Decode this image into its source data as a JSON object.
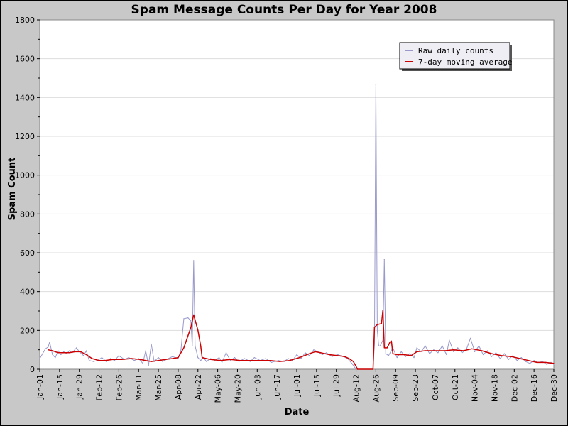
{
  "chart_data": {
    "type": "line",
    "title": "Spam Message Counts Per Day for Year 2008",
    "xlabel": "Date",
    "ylabel": "Spam Count",
    "ylim": [
      0,
      1800
    ],
    "y_ticks": [
      0,
      200,
      400,
      600,
      800,
      1000,
      1200,
      1400,
      1600,
      1800
    ],
    "grid": true,
    "legend_position": "top-right",
    "x_range": [
      "2008-01-01",
      "2008-12-30"
    ],
    "x_tick_labels": [
      "Jan-01",
      "Jan-15",
      "Jan-29",
      "Feb-12",
      "Feb-26",
      "Mar-11",
      "Mar-25",
      "Apr-08",
      "Apr-22",
      "May-06",
      "May-20",
      "Jun-03",
      "Jun-17",
      "Jul-01",
      "Jul-15",
      "Jul-29",
      "Aug-12",
      "Aug-26",
      "Sep-09",
      "Sep-23",
      "Oct-07",
      "Oct-21",
      "Nov-04",
      "Nov-18",
      "Dec-02",
      "Dec-16",
      "Dec-30"
    ],
    "colors": {
      "raw": "#9999cc",
      "avg": "#cc0000",
      "plot_bg": "#ffffff",
      "frame_bg": "#c8c8c8",
      "grid": "#dddddd"
    },
    "series": [
      {
        "name": "Raw daily counts",
        "points": [
          [
            "2008-01-01",
            55
          ],
          [
            "2008-01-03",
            80
          ],
          [
            "2008-01-05",
            105
          ],
          [
            "2008-01-07",
            115
          ],
          [
            "2008-01-08",
            140
          ],
          [
            "2008-01-10",
            75
          ],
          [
            "2008-01-12",
            60
          ],
          [
            "2008-01-14",
            95
          ],
          [
            "2008-01-16",
            75
          ],
          [
            "2008-01-18",
            90
          ],
          [
            "2008-01-20",
            80
          ],
          [
            "2008-01-22",
            95
          ],
          [
            "2008-01-24",
            85
          ],
          [
            "2008-01-27",
            110
          ],
          [
            "2008-01-29",
            90
          ],
          [
            "2008-02-01",
            70
          ],
          [
            "2008-02-03",
            95
          ],
          [
            "2008-02-05",
            45
          ],
          [
            "2008-02-08",
            40
          ],
          [
            "2008-02-11",
            45
          ],
          [
            "2008-02-14",
            60
          ],
          [
            "2008-02-17",
            40
          ],
          [
            "2008-02-20",
            55
          ],
          [
            "2008-02-23",
            45
          ],
          [
            "2008-02-26",
            70
          ],
          [
            "2008-03-01",
            50
          ],
          [
            "2008-03-04",
            60
          ],
          [
            "2008-03-08",
            45
          ],
          [
            "2008-03-11",
            55
          ],
          [
            "2008-03-14",
            30
          ],
          [
            "2008-03-16",
            95
          ],
          [
            "2008-03-18",
            20
          ],
          [
            "2008-03-20",
            130
          ],
          [
            "2008-03-22",
            40
          ],
          [
            "2008-03-25",
            60
          ],
          [
            "2008-03-28",
            40
          ],
          [
            "2008-04-01",
            55
          ],
          [
            "2008-04-04",
            65
          ],
          [
            "2008-04-06",
            60
          ],
          [
            "2008-04-08",
            55
          ],
          [
            "2008-04-10",
            100
          ],
          [
            "2008-04-12",
            260
          ],
          [
            "2008-04-15",
            265
          ],
          [
            "2008-04-17",
            250
          ],
          [
            "2008-04-18",
            120
          ],
          [
            "2008-04-19",
            560
          ],
          [
            "2008-04-20",
            120
          ],
          [
            "2008-04-22",
            60
          ],
          [
            "2008-04-24",
            45
          ],
          [
            "2008-04-26",
            60
          ],
          [
            "2008-04-28",
            40
          ],
          [
            "2008-05-01",
            55
          ],
          [
            "2008-05-04",
            45
          ],
          [
            "2008-05-07",
            60
          ],
          [
            "2008-05-09",
            35
          ],
          [
            "2008-05-12",
            85
          ],
          [
            "2008-05-15",
            45
          ],
          [
            "2008-05-18",
            60
          ],
          [
            "2008-05-21",
            40
          ],
          [
            "2008-05-25",
            55
          ],
          [
            "2008-05-29",
            40
          ],
          [
            "2008-06-01",
            60
          ],
          [
            "2008-06-05",
            45
          ],
          [
            "2008-06-09",
            55
          ],
          [
            "2008-06-13",
            35
          ],
          [
            "2008-06-18",
            45
          ],
          [
            "2008-06-22",
            40
          ],
          [
            "2008-06-25",
            55
          ],
          [
            "2008-06-28",
            45
          ],
          [
            "2008-07-01",
            75
          ],
          [
            "2008-07-04",
            55
          ],
          [
            "2008-07-07",
            85
          ],
          [
            "2008-07-10",
            70
          ],
          [
            "2008-07-13",
            100
          ],
          [
            "2008-07-16",
            90
          ],
          [
            "2008-07-19",
            75
          ],
          [
            "2008-07-22",
            85
          ],
          [
            "2008-07-26",
            65
          ],
          [
            "2008-07-30",
            75
          ],
          [
            "2008-08-03",
            65
          ],
          [
            "2008-08-06",
            55
          ],
          [
            "2008-08-09",
            30
          ],
          [
            "2008-08-12",
            0
          ],
          [
            "2008-08-24",
            0
          ],
          [
            "2008-08-25",
            130
          ],
          [
            "2008-08-26",
            1465
          ],
          [
            "2008-08-27",
            200
          ],
          [
            "2008-08-28",
            120
          ],
          [
            "2008-08-29",
            120
          ],
          [
            "2008-08-31",
            150
          ],
          [
            "2008-09-01",
            565
          ],
          [
            "2008-09-02",
            80
          ],
          [
            "2008-09-04",
            70
          ],
          [
            "2008-09-07",
            110
          ],
          [
            "2008-09-10",
            60
          ],
          [
            "2008-09-13",
            90
          ],
          [
            "2008-09-16",
            65
          ],
          [
            "2008-09-19",
            80
          ],
          [
            "2008-09-22",
            60
          ],
          [
            "2008-09-24",
            110
          ],
          [
            "2008-09-27",
            90
          ],
          [
            "2008-09-30",
            120
          ],
          [
            "2008-10-03",
            80
          ],
          [
            "2008-10-06",
            100
          ],
          [
            "2008-10-09",
            85
          ],
          [
            "2008-10-12",
            120
          ],
          [
            "2008-10-15",
            75
          ],
          [
            "2008-10-17",
            150
          ],
          [
            "2008-10-20",
            90
          ],
          [
            "2008-10-23",
            110
          ],
          [
            "2008-10-26",
            85
          ],
          [
            "2008-10-29",
            100
          ],
          [
            "2008-11-01",
            160
          ],
          [
            "2008-11-04",
            90
          ],
          [
            "2008-11-07",
            120
          ],
          [
            "2008-11-10",
            75
          ],
          [
            "2008-11-13",
            95
          ],
          [
            "2008-11-16",
            65
          ],
          [
            "2008-11-19",
            85
          ],
          [
            "2008-11-22",
            55
          ],
          [
            "2008-11-25",
            80
          ],
          [
            "2008-11-28",
            50
          ],
          [
            "2008-12-01",
            70
          ],
          [
            "2008-12-04",
            45
          ],
          [
            "2008-12-07",
            60
          ],
          [
            "2008-12-10",
            40
          ],
          [
            "2008-12-13",
            30
          ],
          [
            "2008-12-16",
            45
          ],
          [
            "2008-12-19",
            35
          ],
          [
            "2008-12-22",
            40
          ],
          [
            "2008-12-25",
            25
          ],
          [
            "2008-12-28",
            35
          ],
          [
            "2008-12-30",
            25
          ]
        ]
      },
      {
        "name": "7-day moving average",
        "points": [
          [
            "2008-01-07",
            100
          ],
          [
            "2008-01-10",
            95
          ],
          [
            "2008-01-14",
            85
          ],
          [
            "2008-01-18",
            85
          ],
          [
            "2008-01-22",
            85
          ],
          [
            "2008-01-26",
            90
          ],
          [
            "2008-01-30",
            90
          ],
          [
            "2008-02-03",
            75
          ],
          [
            "2008-02-07",
            55
          ],
          [
            "2008-02-12",
            45
          ],
          [
            "2008-02-16",
            45
          ],
          [
            "2008-02-22",
            50
          ],
          [
            "2008-02-28",
            50
          ],
          [
            "2008-03-06",
            55
          ],
          [
            "2008-03-12",
            50
          ],
          [
            "2008-03-16",
            45
          ],
          [
            "2008-03-20",
            40
          ],
          [
            "2008-03-25",
            45
          ],
          [
            "2008-03-30",
            50
          ],
          [
            "2008-04-04",
            55
          ],
          [
            "2008-04-08",
            60
          ],
          [
            "2008-04-12",
            110
          ],
          [
            "2008-04-17",
            215
          ],
          [
            "2008-04-19",
            280
          ],
          [
            "2008-04-22",
            200
          ],
          [
            "2008-04-24",
            120
          ],
          [
            "2008-04-25",
            60
          ],
          [
            "2008-05-01",
            50
          ],
          [
            "2008-05-08",
            45
          ],
          [
            "2008-05-15",
            50
          ],
          [
            "2008-05-22",
            45
          ],
          [
            "2008-05-29",
            45
          ],
          [
            "2008-06-05",
            45
          ],
          [
            "2008-06-12",
            45
          ],
          [
            "2008-06-19",
            40
          ],
          [
            "2008-06-26",
            45
          ],
          [
            "2008-07-03",
            60
          ],
          [
            "2008-07-10",
            80
          ],
          [
            "2008-07-14",
            90
          ],
          [
            "2008-07-18",
            85
          ],
          [
            "2008-07-24",
            75
          ],
          [
            "2008-07-30",
            70
          ],
          [
            "2008-08-04",
            65
          ],
          [
            "2008-08-07",
            55
          ],
          [
            "2008-08-10",
            40
          ],
          [
            "2008-08-12",
            15
          ],
          [
            "2008-08-13",
            0
          ],
          [
            "2008-08-24",
            0
          ],
          [
            "2008-08-25",
            215
          ],
          [
            "2008-08-27",
            230
          ],
          [
            "2008-08-30",
            235
          ],
          [
            "2008-08-31",
            305
          ],
          [
            "2008-09-01",
            110
          ],
          [
            "2008-09-03",
            110
          ],
          [
            "2008-09-05",
            140
          ],
          [
            "2008-09-06",
            145
          ],
          [
            "2008-09-07",
            80
          ],
          [
            "2008-09-10",
            75
          ],
          [
            "2008-09-15",
            75
          ],
          [
            "2008-09-20",
            70
          ],
          [
            "2008-09-24",
            90
          ],
          [
            "2008-09-30",
            95
          ],
          [
            "2008-10-07",
            95
          ],
          [
            "2008-10-14",
            95
          ],
          [
            "2008-10-20",
            100
          ],
          [
            "2008-10-27",
            95
          ],
          [
            "2008-11-02",
            105
          ],
          [
            "2008-11-09",
            95
          ],
          [
            "2008-11-16",
            80
          ],
          [
            "2008-11-23",
            70
          ],
          [
            "2008-11-30",
            65
          ],
          [
            "2008-12-06",
            55
          ],
          [
            "2008-12-12",
            45
          ],
          [
            "2008-12-18",
            35
          ],
          [
            "2008-12-24",
            35
          ],
          [
            "2008-12-30",
            30
          ]
        ]
      }
    ]
  }
}
